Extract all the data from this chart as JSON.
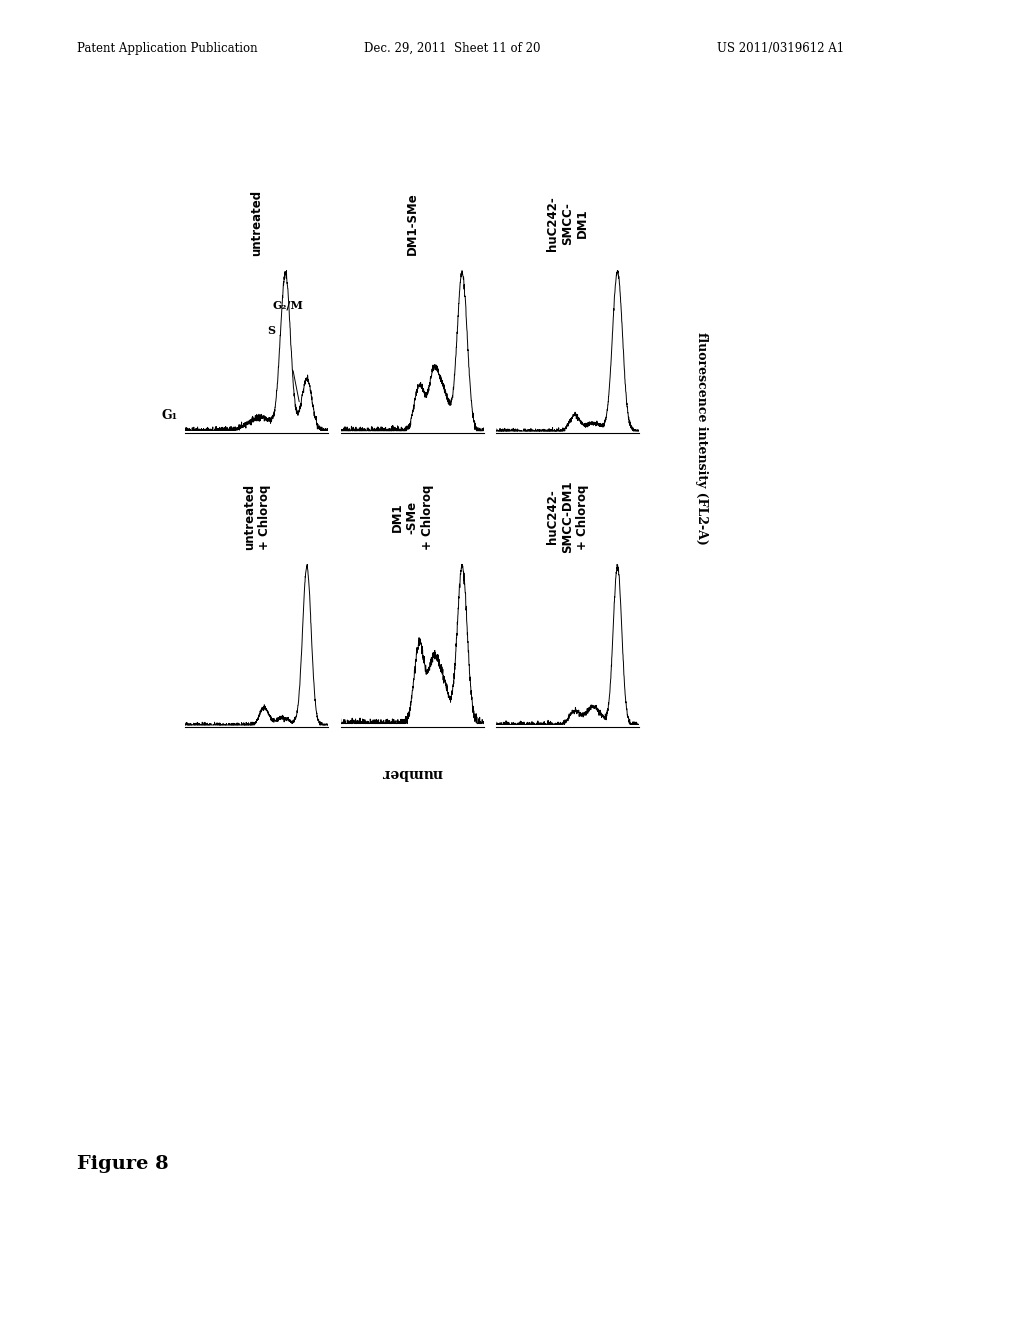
{
  "header_left": "Patent Application Publication",
  "header_mid": "Dec. 29, 2011  Sheet 11 of 20",
  "header_right": "US 2011/0319612 A1",
  "figure_label": "Figure 8",
  "ylabel": "number",
  "xlabel": "fluorescence intensity (FL2-A)",
  "panel_titles": [
    [
      "untreated",
      "DM1-SMe",
      "huC242-\nSMCC-\nDM1"
    ],
    [
      "untreated\n+ Chloroq",
      "DM1\n-SMe\n+ Chloroq",
      "huC242-\nSMCC-DM1\n+ Chloroq"
    ]
  ],
  "g1_label": "G₁",
  "s_label": "S",
  "g2m_label": "G₂/M",
  "background_color": "#ffffff",
  "line_color": "#000000",
  "panel_border_color": "#000000"
}
